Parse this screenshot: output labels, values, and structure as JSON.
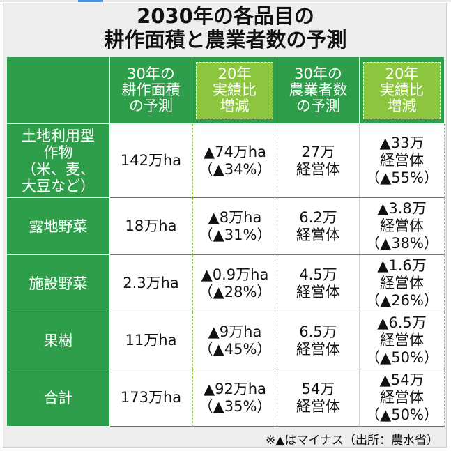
{
  "title": {
    "line1": "2030年の各品目の",
    "line2": "耕作面積と農業者数の予測"
  },
  "headers": [
    [
      "30年の",
      "耕作面積",
      "の予測"
    ],
    [
      "20年",
      "実績比",
      "増減"
    ],
    [
      "30年の",
      "農業者数",
      "の予測"
    ],
    [
      "20年",
      "実績比",
      "増減"
    ]
  ],
  "rows": [
    {
      "label": [
        "土地利用型",
        "作物",
        "（米、麦、",
        "大豆など）"
      ],
      "area": [
        "142万ha"
      ],
      "area_change": [
        "▲74万ha",
        "（▲34%）"
      ],
      "farmers": [
        "27万",
        "経営体"
      ],
      "farmers_change": [
        "▲33万",
        "経営体",
        "（▲55%）"
      ]
    },
    {
      "label": [
        "露地野菜"
      ],
      "area": [
        "18万ha"
      ],
      "area_change": [
        "▲8万ha",
        "（▲31%）"
      ],
      "farmers": [
        "6.2万",
        "経営体"
      ],
      "farmers_change": [
        "▲3.8万",
        "経営体",
        "（▲38%）"
      ]
    },
    {
      "label": [
        "施設野菜"
      ],
      "area": [
        "2.3万ha"
      ],
      "area_change": [
        "▲0.9万ha",
        "（▲28%）"
      ],
      "farmers": [
        "4.5万",
        "経営体"
      ],
      "farmers_change": [
        "▲1.6万",
        "経営体",
        "（▲26%）"
      ]
    },
    {
      "label": [
        "果樹"
      ],
      "area": [
        "11万ha"
      ],
      "area_change": [
        "▲9万ha",
        "（▲45%）"
      ],
      "farmers": [
        "6.5万",
        "経営体"
      ],
      "farmers_change": [
        "▲6.5万",
        "経営体",
        "（▲50%）"
      ]
    },
    {
      "label": [
        "合計"
      ],
      "area": [
        "173万ha"
      ],
      "area_change": [
        "▲92万ha",
        "（▲35%）"
      ],
      "farmers": [
        "54万",
        "経営体"
      ],
      "farmers_change": [
        "▲54万",
        "経営体",
        "（▲50%）"
      ]
    }
  ],
  "note": "※▲はマイナス（出所：農水省）",
  "colors": {
    "header_dark_green": "#2e9e4a",
    "header_light_green": "#8cc63f"
  }
}
